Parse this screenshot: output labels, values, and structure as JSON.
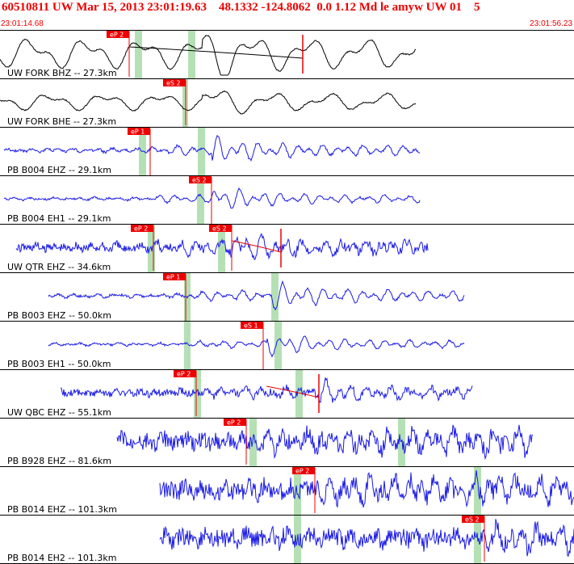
{
  "header": {
    "title": "60510811 UW Mar 15, 2013 23:01:19.63    48.1332 -124.8062  0.0 1.12 Md le amyw UW 01    5",
    "start_time": "23:01:14.68",
    "end_time": "23:01:56.23"
  },
  "colors": {
    "uw_trace": "#000000",
    "pb_trace": "#1a1ae6",
    "pick": "#ee0000",
    "window": "#b5e0b5",
    "frame": "#000000"
  },
  "traces": [
    {
      "label": "UW FORK BHZ -- 27.3km",
      "net": "UW",
      "pick": "eP 2",
      "style": "smooth",
      "start": 0,
      "end": 515,
      "amp": 18,
      "onset": 160,
      "arrival": 250,
      "decay": 12,
      "seed": 3,
      "picks": [
        {
          "t": 160,
          "label": "eP 2",
          "drop": 58
        }
      ],
      "windows": [
        [
          167,
          176
        ],
        [
          233,
          242
        ]
      ],
      "coda": {
        "t": 375,
        "from": 160
      }
    },
    {
      "label": "UW FORK BHE -- 27.3km",
      "net": "UW",
      "pick": "eS 2",
      "style": "smooth",
      "start": 0,
      "end": 515,
      "amp": 10,
      "onset": 230,
      "arrival": 250,
      "decay": 8,
      "seed": 11,
      "picks": [
        {
          "t": 230,
          "label": "eS 2",
          "drop": 58
        }
      ],
      "windows": [
        [
          226,
          233
        ]
      ]
    },
    {
      "label": "PB B004 EHZ -- 29.1km",
      "net": "PB",
      "pick": "eP 1",
      "style": "wiggle",
      "start": 5,
      "end": 520,
      "amp": 4,
      "onset": 186,
      "arrival": 262,
      "decay": 24,
      "seed": 21,
      "picks": [
        {
          "t": 186,
          "label": "eP 1",
          "drop": 60
        }
      ],
      "windows": [
        [
          172,
          181
        ],
        [
          245,
          254
        ]
      ]
    },
    {
      "label": "PB B004 EH1 -- 29.1km",
      "net": "PB",
      "pick": "eS 2",
      "style": "wiggle",
      "start": 5,
      "end": 520,
      "amp": 3,
      "onset": 190,
      "arrival": 262,
      "decay": 24,
      "seed": 31,
      "picks": [
        {
          "t": 262,
          "label": "eS 2",
          "drop": 60
        }
      ],
      "windows": [
        [
          244,
          253
        ]
      ]
    },
    {
      "label": "UW QTR EHZ -- 34.6km",
      "net": "UW",
      "pick": "eP 2",
      "style": "noisy",
      "start": 20,
      "end": 530,
      "amp": 5,
      "onset": 190,
      "arrival": 285,
      "decay": 20,
      "seed": 41,
      "picks": [
        {
          "t": 190,
          "label": "eP 2",
          "drop": 58
        },
        {
          "t": 287,
          "label": "eS 2",
          "drop": 58
        }
      ],
      "windows": [
        [
          183,
          192
        ],
        [
          270,
          279
        ]
      ],
      "coda": {
        "t": 348,
        "from": 287
      }
    },
    {
      "label": "PB B003 EHZ -- 50.0km",
      "net": "PB",
      "pick": "eP 1",
      "style": "wiggle",
      "start": 60,
      "end": 575,
      "amp": 4,
      "onset": 230,
      "arrival": 336,
      "decay": 22,
      "seed": 51,
      "picks": [
        {
          "t": 230,
          "label": "eP 1",
          "drop": 60
        }
      ],
      "windows": [
        [
          228,
          236
        ],
        [
          336,
          345
        ]
      ]
    },
    {
      "label": "PB B003 EH1 -- 50.0km",
      "net": "PB",
      "pick": "eS 1",
      "style": "wiggle",
      "start": 60,
      "end": 575,
      "amp": 3,
      "onset": 240,
      "arrival": 330,
      "decay": 22,
      "seed": 61,
      "picks": [
        {
          "t": 326,
          "label": "eS 1",
          "drop": 60
        }
      ],
      "windows": [
        [
          228,
          236
        ],
        [
          340,
          349
        ]
      ]
    },
    {
      "label": "UW QBC EHZ -- 55.1km",
      "net": "UW",
      "pick": "eP 2",
      "style": "noisy",
      "start": 75,
      "end": 585,
      "amp": 4,
      "onset": 243,
      "arrival": 395,
      "decay": 20,
      "seed": 71,
      "picks": [
        {
          "t": 243,
          "label": "eP 2",
          "drop": 58
        }
      ],
      "windows": [
        [
          240,
          249
        ],
        [
          366,
          375
        ]
      ],
      "coda": {
        "t": 395,
        "from": 330
      }
    },
    {
      "label": "PB B928 EHZ -- 81.6km",
      "net": "PB",
      "pick": "eP 2",
      "style": "noisy",
      "start": 145,
      "end": 660,
      "amp": 9,
      "onset": 305,
      "arrival": 320,
      "decay": 0,
      "seed": 81,
      "picks": [
        {
          "t": 305,
          "label": "eP 2",
          "drop": 58
        }
      ],
      "windows": [
        [
          309,
          318
        ],
        [
          493,
          502
        ]
      ]
    },
    {
      "label": "PB B014 EHZ -- 101.3km",
      "net": "PB",
      "pick": "eP 2",
      "style": "noisy",
      "start": 198,
      "end": 711,
      "amp": 10,
      "onset": 380,
      "arrival": 395,
      "decay": 0,
      "seed": 91,
      "picks": [
        {
          "t": 390,
          "label": "eP 2",
          "drop": 58
        }
      ],
      "windows": [
        [
          364,
          373
        ],
        [
          587,
          596
        ]
      ]
    },
    {
      "label": "PB B014 EH2 -- 101.3km",
      "net": "PB",
      "pick": "eS 2",
      "style": "noisy",
      "start": 198,
      "end": 711,
      "amp": 10,
      "onset": 600,
      "arrival": 600,
      "decay": 0,
      "seed": 101,
      "picks": [
        {
          "t": 600,
          "label": "eS 2",
          "drop": 58
        }
      ],
      "windows": [
        [
          364,
          373
        ],
        [
          587,
          596
        ]
      ]
    }
  ]
}
